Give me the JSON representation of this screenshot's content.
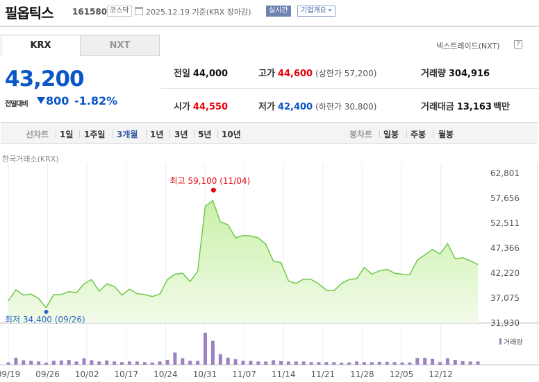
{
  "header": {
    "stock_name": "필옵틱스",
    "stock_code": "161580",
    "market": "코스닥",
    "date_text": "2025.12.19 기준(KRX 장마감)",
    "realtime_label": "실시간",
    "company_label": "기업개요"
  },
  "tabs": {
    "krx": "KRX",
    "nxt": "NXT",
    "nxt_title": "넥스트레이드(NXT)",
    "help": "?"
  },
  "price": {
    "current": "43,200",
    "diff_label": "전일대비",
    "diff_value": "800",
    "diff_pct": "-1.82%"
  },
  "stats": {
    "prev": {
      "label": "전일",
      "value": "44,000"
    },
    "high": {
      "label": "고가",
      "value": "44,600",
      "sub": "(상한가 57,200)"
    },
    "volume": {
      "label": "거래량",
      "value": "304,916"
    },
    "open": {
      "label": "시가",
      "value": "44,550"
    },
    "low": {
      "label": "저가",
      "value": "42,400",
      "sub": "(하한가 30,800)"
    },
    "amount": {
      "label": "거래대금",
      "value": "13,163",
      "unit": "백만"
    }
  },
  "period_bar": {
    "line_chart_label": "선차트",
    "periods": [
      "1일",
      "1주일",
      "3개월",
      "1년",
      "3년",
      "5년",
      "10년"
    ],
    "active_period": "3개월",
    "candle_label": "봉차트",
    "candles": [
      "일봉",
      "주봉",
      "월봉"
    ]
  },
  "chart_source": "한국거래소(KRX)",
  "chart_data": {
    "type": "area",
    "y_ticks": [
      "62,801",
      "57,656",
      "52,511",
      "47,366",
      "42,220",
      "37,075",
      "31,930"
    ],
    "ylim": [
      31930,
      62801
    ],
    "x_ticks": [
      "09/19",
      "09/26",
      "10/02",
      "10/17",
      "10/24",
      "10/31",
      "11/07",
      "11/14",
      "11/21",
      "11/28",
      "12/05",
      "12/12"
    ],
    "max_label": "최고 59,100 (11/04)",
    "min_label": "최저 34,400 (09/26)",
    "volume_label": "거래량",
    "colors": {
      "line": "#6fc84b",
      "fill_top": "#c9f0a8",
      "fill_bottom": "#f2fbe9",
      "max_dot": "#e8000b",
      "min_dot": "#2c64c8",
      "volume": "#9b82c2"
    },
    "prices": [
      36500,
      38800,
      37700,
      37900,
      37000,
      35100,
      37800,
      37800,
      38400,
      38200,
      40000,
      40900,
      38500,
      40000,
      39500,
      37700,
      38900,
      38000,
      37800,
      37400,
      37900,
      40900,
      42000,
      42200,
      40500,
      42600,
      56000,
      57200,
      52800,
      52200,
      49500,
      50000,
      49900,
      49500,
      48200,
      44700,
      44400,
      40600,
      40100,
      41000,
      40900,
      40000,
      38700,
      38600,
      40100,
      40900,
      41100,
      43400,
      42000,
      42700,
      43000,
      42200,
      42000,
      41900,
      44900,
      46000,
      47100,
      46200,
      48300,
      45200,
      45400,
      44800,
      44000
    ],
    "volumes": [
      0.07,
      0.22,
      0.14,
      0.12,
      0.1,
      0.06,
      0.12,
      0.13,
      0.15,
      0.1,
      0.2,
      0.14,
      0.1,
      0.13,
      0.1,
      0.08,
      0.1,
      0.1,
      0.08,
      0.07,
      0.1,
      0.15,
      0.38,
      0.2,
      0.12,
      0.12,
      1.0,
      0.75,
      0.33,
      0.22,
      0.17,
      0.12,
      0.12,
      0.1,
      0.1,
      0.14,
      0.11,
      0.1,
      0.1,
      0.1,
      0.08,
      0.08,
      0.08,
      0.08,
      0.06,
      0.07,
      0.1,
      0.08,
      0.08,
      0.09,
      0.09,
      0.08,
      0.07,
      0.07,
      0.21,
      0.21,
      0.18,
      0.08,
      0.2,
      0.15,
      0.11,
      0.1,
      0.1
    ]
  }
}
